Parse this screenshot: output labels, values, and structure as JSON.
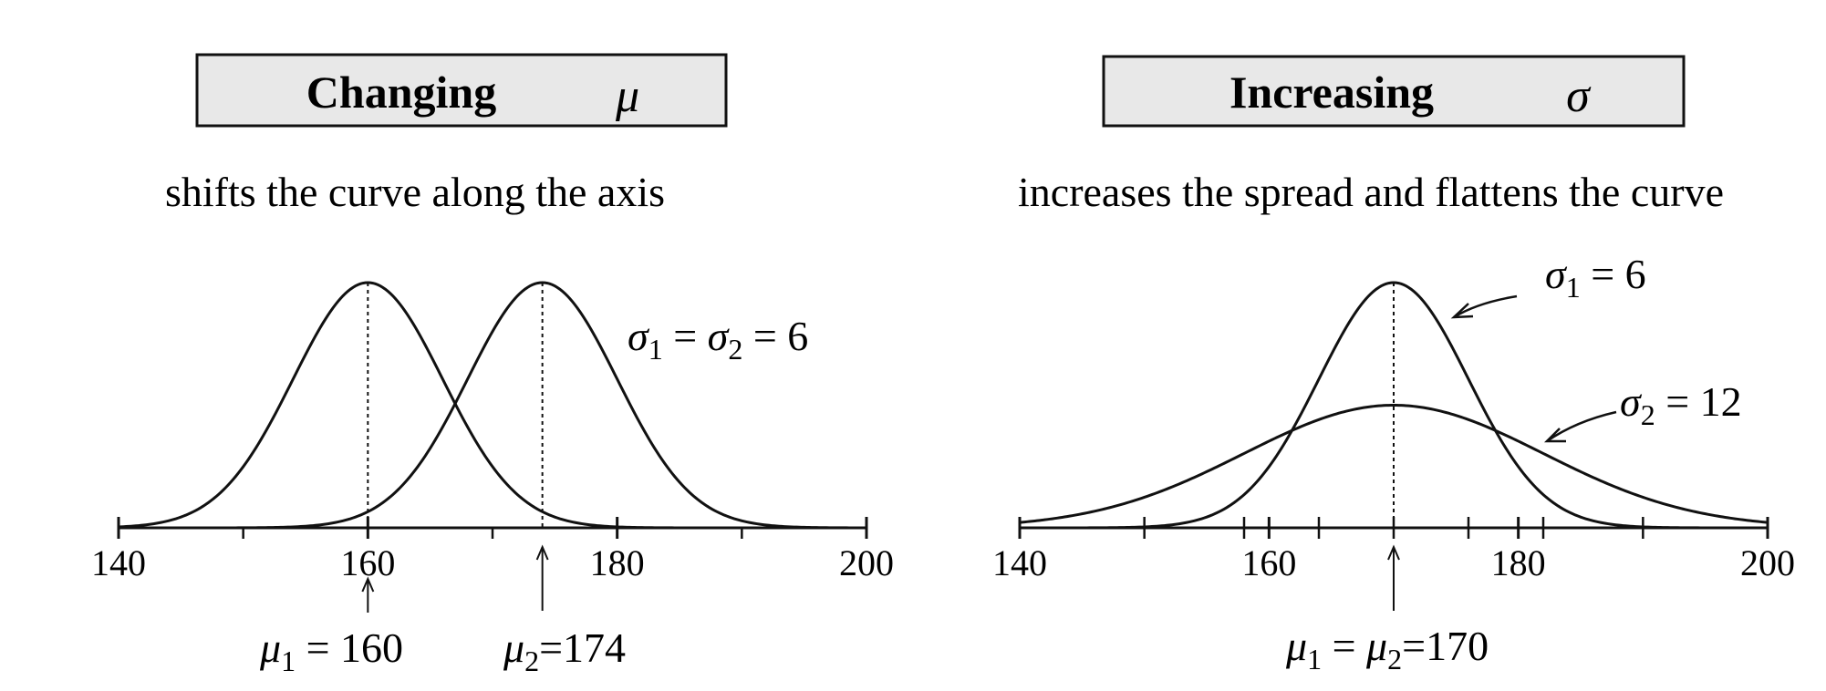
{
  "panels": [
    {
      "title": "Changing",
      "title_symbol": "μ",
      "subtitle": "shifts the curve along the axis"
    },
    {
      "title": "Increasing",
      "title_symbol": "σ",
      "subtitle": "increases the spread and flattens the curve"
    }
  ],
  "chart_data": [
    {
      "type": "line",
      "xlim": [
        140,
        200
      ],
      "x_ticks": [
        140,
        160,
        180,
        200
      ],
      "x_minor_ticks": [
        150,
        170,
        190
      ],
      "series": [
        {
          "mean": 160,
          "sd": 6
        },
        {
          "mean": 174,
          "sd": 6
        }
      ],
      "annotations": {
        "sigma_label": {
          "sym1": "σ",
          "sub1": "1",
          "eq1": " = ",
          "sym2": "σ",
          "sub2": "2",
          "eq2": " = 6"
        },
        "mu1_label": {
          "sym": "μ",
          "sub": "1",
          "rest": " = 160"
        },
        "mu2_label": {
          "sym": "μ",
          "sub": "2",
          "rest": "=174"
        }
      }
    },
    {
      "type": "line",
      "xlim": [
        140,
        200
      ],
      "x_ticks": [
        140,
        160,
        180,
        200
      ],
      "x_minor_ticks": [
        150,
        158,
        164,
        170,
        176,
        182,
        190
      ],
      "series": [
        {
          "mean": 170,
          "sd": 6
        },
        {
          "mean": 170,
          "sd": 12
        }
      ],
      "annotations": {
        "sigma1_label": {
          "sym": "σ",
          "sub": "1",
          "rest": " = 6"
        },
        "sigma2_label": {
          "sym": "σ",
          "sub": "2",
          "rest": " = 12"
        },
        "mu_label": {
          "sym1": "μ",
          "sub1": "1",
          "eq": " = ",
          "sym2": "μ",
          "sub2": "2",
          "rest": "=170"
        }
      }
    }
  ]
}
